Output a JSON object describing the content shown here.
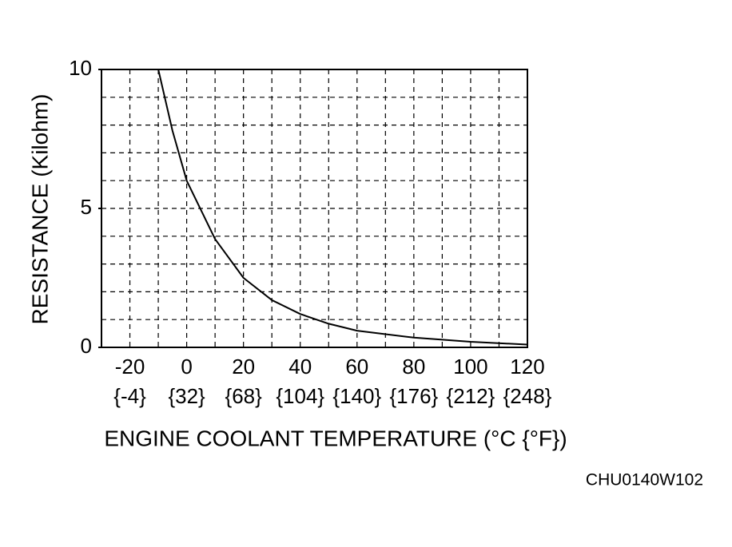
{
  "chart_data": {
    "type": "line",
    "x_label": "ENGINE COOLANT TEMPERATURE (°C {°F})",
    "y_label": "RESISTANCE (Kilohm)",
    "annotation": "CHU0140W102",
    "x": [
      -10,
      -5,
      0,
      10,
      20,
      30,
      40,
      50,
      60,
      80,
      100,
      120
    ],
    "series": [
      {
        "color": "#000000",
        "values": [
          10,
          7.8,
          6.0,
          3.9,
          2.5,
          1.7,
          1.2,
          0.85,
          0.6,
          0.35,
          0.2,
          0.1
        ]
      }
    ],
    "xlim": [
      -30,
      120
    ],
    "ylim": [
      0,
      10
    ],
    "xticks": [
      -20,
      0,
      20,
      40,
      60,
      80,
      100,
      120
    ],
    "xtick_sublabels": [
      "{-4}",
      "{32}",
      "{68}",
      "{104}",
      "{140}",
      "{176}",
      "{212}",
      "{248}"
    ],
    "yticks": [
      0,
      5,
      10
    ],
    "xgrid": [
      -20,
      -10,
      0,
      10,
      20,
      30,
      40,
      50,
      60,
      70,
      80,
      90,
      100,
      110
    ],
    "ygrid": [
      1,
      2,
      3,
      4,
      5,
      6,
      7,
      8,
      9
    ],
    "grid": true
  }
}
